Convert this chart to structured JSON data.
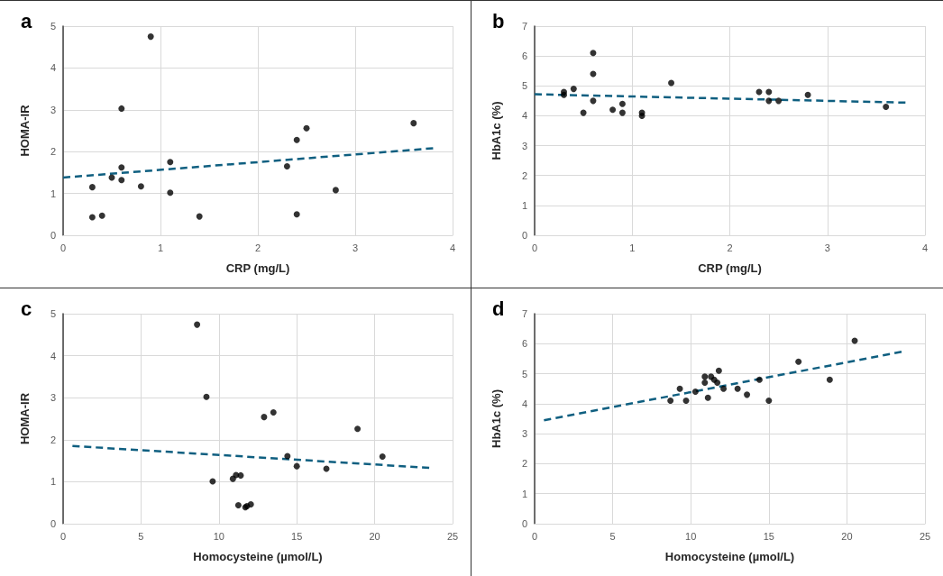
{
  "chart_data": [
    {
      "type": "scatter",
      "title": "a",
      "xlabel": "CRP (mg/L)",
      "ylabel": "HOMA-IR",
      "xlim": [
        0,
        4
      ],
      "xticks": [
        0,
        1,
        2,
        3,
        4
      ],
      "ylim": [
        0,
        5
      ],
      "yticks": [
        0,
        1,
        2,
        3,
        4,
        5
      ],
      "grid": true,
      "series": [
        {
          "marker": "circle",
          "color": "#000000",
          "x": [
            0.3,
            0.3,
            0.4,
            0.5,
            0.6,
            0.6,
            0.6,
            0.8,
            0.9,
            1.1,
            1.1,
            1.4,
            2.3,
            2.4,
            2.5,
            2.4,
            2.8,
            3.6
          ],
          "values": [
            1.15,
            0.43,
            0.47,
            1.38,
            3.03,
            1.62,
            1.32,
            1.17,
            4.75,
            1.75,
            1.02,
            0.45,
            1.65,
            2.28,
            2.56,
            0.5,
            1.08,
            2.68
          ]
        },
        {
          "type": "line",
          "line_style": "dashed",
          "color": "#0f5f80",
          "x": [
            0,
            3.8
          ],
          "values": [
            1.38,
            2.08
          ]
        }
      ]
    },
    {
      "type": "scatter",
      "title": "b",
      "xlabel": "CRP (mg/L)",
      "ylabel": "HbA1c (%)",
      "xlim": [
        0,
        4
      ],
      "xticks": [
        0,
        1,
        2,
        3,
        4
      ],
      "ylim": [
        0,
        7
      ],
      "yticks": [
        0,
        1,
        2,
        3,
        4,
        5,
        6,
        7
      ],
      "grid": true,
      "series": [
        {
          "marker": "circle",
          "color": "#000000",
          "x": [
            0.3,
            0.3,
            0.4,
            0.5,
            0.6,
            0.6,
            0.6,
            0.8,
            0.9,
            0.9,
            1.1,
            1.1,
            1.4,
            2.3,
            2.4,
            2.4,
            2.5,
            2.8,
            3.6
          ],
          "values": [
            4.8,
            4.7,
            4.9,
            4.1,
            6.1,
            5.4,
            4.5,
            4.2,
            4.4,
            4.1,
            4.1,
            4.0,
            5.1,
            4.8,
            4.8,
            4.5,
            4.5,
            4.7,
            4.3
          ]
        },
        {
          "type": "line",
          "line_style": "dashed",
          "color": "#0f5f80",
          "x": [
            0,
            3.8
          ],
          "values": [
            4.72,
            4.44
          ]
        }
      ]
    },
    {
      "type": "scatter",
      "title": "c",
      "xlabel": "Homocysteine (µmol/L)",
      "ylabel": "HOMA-IR",
      "xlim": [
        0,
        25
      ],
      "xticks": [
        0,
        5,
        10,
        15,
        20,
        25
      ],
      "ylim": [
        0,
        5
      ],
      "yticks": [
        0,
        1,
        2,
        3,
        4,
        5
      ],
      "grid": true,
      "series": [
        {
          "marker": "circle",
          "color": "#000000",
          "x": [
            8.6,
            9.2,
            9.6,
            10.9,
            11.1,
            11.4,
            11.25,
            11.7,
            11.8,
            12.05,
            12.9,
            13.5,
            14.4,
            15.0,
            16.9,
            18.9,
            20.5
          ],
          "values": [
            4.74,
            3.02,
            1.01,
            1.07,
            1.16,
            1.15,
            0.44,
            0.39,
            0.42,
            0.46,
            2.54,
            2.65,
            1.61,
            1.37,
            1.31,
            2.26,
            1.6
          ]
        },
        {
          "type": "line",
          "line_style": "dashed",
          "color": "#0f5f80",
          "x": [
            0.6,
            23.5
          ],
          "values": [
            1.85,
            1.33
          ]
        }
      ]
    },
    {
      "type": "scatter",
      "title": "d",
      "xlabel": "Homocysteine (µmol/L)",
      "ylabel": "HbA1c (%)",
      "xlim": [
        0,
        25
      ],
      "xticks": [
        0,
        5,
        10,
        15,
        20,
        25
      ],
      "ylim": [
        0,
        7
      ],
      "yticks": [
        0,
        1,
        2,
        3,
        4,
        5,
        6,
        7
      ],
      "grid": true,
      "series": [
        {
          "marker": "circle",
          "color": "#000000",
          "x": [
            8.7,
            9.3,
            9.7,
            10.3,
            10.9,
            10.9,
            11.1,
            11.3,
            11.5,
            11.7,
            11.8,
            12.1,
            13.0,
            13.6,
            14.4,
            15.0,
            16.9,
            18.9,
            20.5
          ],
          "values": [
            4.1,
            4.5,
            4.1,
            4.4,
            4.7,
            4.9,
            4.2,
            4.9,
            4.8,
            4.7,
            5.1,
            4.5,
            4.5,
            4.3,
            4.8,
            4.1,
            5.4,
            4.8,
            6.1
          ]
        },
        {
          "type": "line",
          "line_style": "dashed",
          "color": "#0f5f80",
          "x": [
            0.6,
            23.5
          ],
          "values": [
            3.45,
            5.73
          ]
        }
      ]
    }
  ]
}
